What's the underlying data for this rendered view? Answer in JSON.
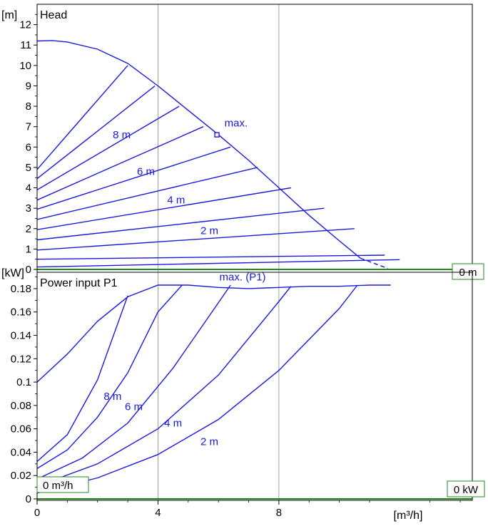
{
  "chart_data": [
    {
      "type": "line",
      "title": "Head",
      "ylabel": "[m]",
      "xlim": [
        0,
        14.4
      ],
      "ylim": [
        0,
        13
      ],
      "yticks": [
        0,
        1,
        2,
        3,
        4,
        5,
        6,
        7,
        8,
        9,
        10,
        11,
        12
      ],
      "curve_labels": [
        {
          "text": "8 m",
          "x": 2.8,
          "y": 6.6
        },
        {
          "text": "6 m",
          "x": 3.6,
          "y": 4.8
        },
        {
          "text": "4 m",
          "x": 4.6,
          "y": 3.4
        },
        {
          "text": "2 m",
          "x": 5.7,
          "y": 1.9
        }
      ],
      "max_label": {
        "text": "max.",
        "x": 6.2,
        "y": 7.0
      },
      "max_marker": {
        "x": 5.95,
        "y": 6.6
      },
      "max_curve": [
        [
          0,
          11.2
        ],
        [
          0.5,
          11.22
        ],
        [
          1,
          11.15
        ],
        [
          2,
          10.8
        ],
        [
          3,
          10.1
        ],
        [
          4,
          9.0
        ],
        [
          5,
          7.8
        ],
        [
          6,
          6.6
        ],
        [
          7,
          5.35
        ],
        [
          8,
          4.0
        ],
        [
          9,
          2.65
        ],
        [
          10,
          1.4
        ],
        [
          10.7,
          0.55
        ],
        [
          11.6,
          0.05
        ]
      ],
      "max_curve_dashed_from": 10.7,
      "constant_curves": [
        [
          [
            0,
            4.9
          ],
          [
            3,
            10.0
          ]
        ],
        [
          [
            0,
            4.45
          ],
          [
            3.9,
            9.0
          ]
        ],
        [
          [
            0,
            3.9
          ],
          [
            4.7,
            8.0
          ]
        ],
        [
          [
            0,
            3.4
          ],
          [
            5.5,
            7.0
          ]
        ],
        [
          [
            0,
            2.95
          ],
          [
            6.4,
            6.0
          ]
        ],
        [
          [
            0,
            2.45
          ],
          [
            7.3,
            5.0
          ]
        ],
        [
          [
            0,
            1.95
          ],
          [
            8.4,
            4.0
          ]
        ],
        [
          [
            0,
            1.45
          ],
          [
            9.5,
            3.0
          ]
        ],
        [
          [
            0,
            0.95
          ],
          [
            10.5,
            2.0
          ]
        ],
        [
          [
            0,
            0.5
          ],
          [
            11.5,
            0.7
          ]
        ],
        [
          [
            0,
            0.12
          ],
          [
            12.0,
            0.48
          ]
        ]
      ],
      "zero_label": "0 m"
    },
    {
      "type": "line",
      "title": "Power input P1",
      "ylabel": "[kW]",
      "xlabel": "[m³/h]",
      "xlim": [
        0,
        14.4
      ],
      "ylim": [
        0,
        0.194
      ],
      "xticks": [
        0,
        4,
        8
      ],
      "ytick_labels": [
        "0",
        "0.02",
        "0.04",
        "0.06",
        "0.08",
        "0.1",
        "0.12",
        "0.14",
        "0.16",
        "0.18"
      ],
      "ytick_values": [
        0,
        0.02,
        0.04,
        0.06,
        0.08,
        0.1,
        0.12,
        0.14,
        0.16,
        0.18
      ],
      "max_label": {
        "text": "max. (P1)",
        "x": 6.8,
        "y": 0.187
      },
      "max_power_curve": [
        [
          0,
          0.1
        ],
        [
          1,
          0.124
        ],
        [
          2,
          0.152
        ],
        [
          3,
          0.173
        ],
        [
          4,
          0.183
        ],
        [
          5,
          0.183
        ],
        [
          6,
          0.181
        ],
        [
          7,
          0.18
        ],
        [
          8,
          0.181
        ],
        [
          9,
          0.182
        ],
        [
          10,
          0.182
        ],
        [
          11,
          0.183
        ],
        [
          11.7,
          0.183
        ]
      ],
      "power_curves": [
        [
          [
            0,
            0.032
          ],
          [
            1,
            0.055
          ],
          [
            2,
            0.102
          ],
          [
            3,
            0.174
          ]
        ],
        [
          [
            0,
            0.026
          ],
          [
            1,
            0.042
          ],
          [
            2,
            0.07
          ],
          [
            3,
            0.108
          ],
          [
            4,
            0.16
          ],
          [
            4.8,
            0.183
          ]
        ],
        [
          [
            0,
            0.017
          ],
          [
            1.5,
            0.035
          ],
          [
            3,
            0.065
          ],
          [
            4.5,
            0.112
          ],
          [
            6,
            0.168
          ],
          [
            6.4,
            0.183
          ]
        ],
        [
          [
            0,
            0.011
          ],
          [
            2,
            0.03
          ],
          [
            4,
            0.06
          ],
          [
            6,
            0.106
          ],
          [
            8,
            0.169
          ],
          [
            8.4,
            0.182
          ]
        ],
        [
          [
            0,
            0.005
          ],
          [
            2,
            0.018
          ],
          [
            4,
            0.038
          ],
          [
            6,
            0.068
          ],
          [
            8,
            0.11
          ],
          [
            10,
            0.163
          ],
          [
            10.6,
            0.183
          ]
        ]
      ],
      "curve_labels": [
        {
          "text": "8 m",
          "x": 2.5,
          "y": 0.088
        },
        {
          "text": "6 m",
          "x": 3.2,
          "y": 0.079
        },
        {
          "text": "4 m",
          "x": 4.5,
          "y": 0.065
        },
        {
          "text": "2 m",
          "x": 5.7,
          "y": 0.049
        }
      ],
      "zero_x_label": "0 m³/h",
      "zero_y_label": "0 kW"
    }
  ],
  "colors": {
    "curve": "#1a1adb",
    "frame": "#000000",
    "grid": "#8a8a8a",
    "zero_line": "#1f8a1f"
  }
}
